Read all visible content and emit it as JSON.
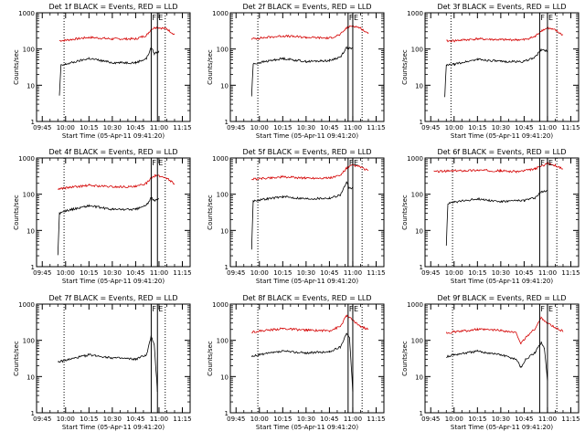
{
  "chart_data": [
    {
      "type": "line",
      "panel": "1",
      "title": "Det 1f BLACK = Events, RED = LLD",
      "xlabel": "Start Time (05-Apr-11 09:41:20)",
      "ylabel": "Counts/sec",
      "xticks": [
        "09:45",
        "10:00",
        "10:15",
        "10:30",
        "10:45",
        "11:00",
        "11:15"
      ],
      "yticks": [
        "1",
        "10",
        "100",
        "1000"
      ],
      "yscale": "log",
      "ylim": [
        1,
        1000
      ],
      "markers": [
        {
          "label": "F",
          "time": "10:55"
        },
        {
          "label": "E",
          "time": "10:59"
        }
      ],
      "dotted_lines": [
        "09:59",
        "11:04"
      ],
      "series": [
        {
          "color": "#d40000",
          "points": [
            [
              "09:56",
              170
            ],
            [
              "10:00",
              175
            ],
            [
              "10:15",
              210
            ],
            [
              "10:30",
              190
            ],
            [
              "10:45",
              190
            ],
            [
              "10:52",
              240
            ],
            [
              "10:55",
              350
            ],
            [
              "10:58",
              400
            ],
            [
              "11:05",
              360
            ],
            [
              "11:10",
              250
            ]
          ]
        },
        {
          "color": "#000000",
          "points": [
            [
              "09:56",
              5
            ],
            [
              "09:57",
              35
            ],
            [
              "10:00",
              38
            ],
            [
              "10:15",
              55
            ],
            [
              "10:30",
              42
            ],
            [
              "10:45",
              42
            ],
            [
              "10:52",
              55
            ],
            [
              "10:55",
              110
            ],
            [
              "10:57",
              75
            ],
            [
              "11:00",
              85
            ]
          ]
        }
      ]
    },
    {
      "type": "line",
      "panel": "2",
      "title": "Det 2f BLACK = Events, RED = LLD",
      "xlabel": "Start Time (05-Apr-11 09:41:20)",
      "ylabel": "Counts/sec",
      "xticks": [
        "09:45",
        "10:00",
        "10:15",
        "10:30",
        "10:45",
        "11:00",
        "11:15"
      ],
      "yticks": [
        "1",
        "10",
        "100",
        "1000"
      ],
      "yscale": "log",
      "ylim": [
        1,
        1000
      ],
      "markers": [
        {
          "label": "F",
          "time": "10:57"
        },
        {
          "label": "E",
          "time": "11:00"
        }
      ],
      "dotted_lines": [
        "09:59",
        "11:06"
      ],
      "series": [
        {
          "color": "#d40000",
          "points": [
            [
              "09:55",
              190
            ],
            [
              "10:00",
              200
            ],
            [
              "10:15",
              230
            ],
            [
              "10:30",
              210
            ],
            [
              "10:45",
              200
            ],
            [
              "10:52",
              250
            ],
            [
              "10:56",
              380
            ],
            [
              "11:00",
              440
            ],
            [
              "11:05",
              380
            ],
            [
              "11:10",
              260
            ]
          ]
        },
        {
          "color": "#000000",
          "points": [
            [
              "09:55",
              5
            ],
            [
              "09:56",
              38
            ],
            [
              "10:00",
              42
            ],
            [
              "10:15",
              55
            ],
            [
              "10:30",
              45
            ],
            [
              "10:45",
              48
            ],
            [
              "10:52",
              60
            ],
            [
              "10:56",
              110
            ],
            [
              "11:00",
              100
            ]
          ]
        }
      ]
    },
    {
      "type": "line",
      "panel": "3",
      "title": "Det 3f BLACK = Events, RED = LLD",
      "xlabel": "Start Time (05-Apr-11 09:41:20)",
      "ylabel": "Counts/sec",
      "xticks": [
        "09:45",
        "10:00",
        "10:15",
        "10:30",
        "10:45",
        "11:00",
        "11:15"
      ],
      "yticks": [
        "1",
        "10",
        "100",
        "1000"
      ],
      "yscale": "log",
      "ylim": [
        1,
        1000
      ],
      "markers": [
        {
          "label": "F",
          "time": "10:55"
        },
        {
          "label": "E",
          "time": "11:00"
        }
      ],
      "dotted_lines": [
        "09:58",
        "11:06"
      ],
      "series": [
        {
          "color": "#d40000",
          "points": [
            [
              "09:55",
              165
            ],
            [
              "10:00",
              170
            ],
            [
              "10:15",
              190
            ],
            [
              "10:30",
              180
            ],
            [
              "10:45",
              180
            ],
            [
              "10:52",
              220
            ],
            [
              "10:56",
              320
            ],
            [
              "11:00",
              380
            ],
            [
              "11:05",
              330
            ],
            [
              "11:10",
              240
            ]
          ]
        },
        {
          "color": "#000000",
          "points": [
            [
              "09:54",
              5
            ],
            [
              "09:55",
              35
            ],
            [
              "10:00",
              38
            ],
            [
              "10:15",
              52
            ],
            [
              "10:30",
              45
            ],
            [
              "10:45",
              45
            ],
            [
              "10:52",
              60
            ],
            [
              "10:56",
              95
            ],
            [
              "11:00",
              90
            ]
          ]
        }
      ]
    },
    {
      "type": "line",
      "panel": "4",
      "title": "Det 4f BLACK = Events, RED = LLD",
      "xlabel": "Start Time (05-Apr-11 09:41:20)",
      "ylabel": "Counts/sec",
      "xticks": [
        "09:45",
        "10:00",
        "10:15",
        "10:30",
        "10:45",
        "11:00",
        "11:15"
      ],
      "yticks": [
        "1",
        "10",
        "100",
        "1000"
      ],
      "yscale": "log",
      "ylim": [
        1,
        1000
      ],
      "markers": [
        {
          "label": "F",
          "time": "10:55"
        },
        {
          "label": "E",
          "time": "10:59"
        }
      ],
      "dotted_lines": [
        "09:59",
        "11:04"
      ],
      "series": [
        {
          "color": "#d40000",
          "points": [
            [
              "09:55",
              140
            ],
            [
              "10:00",
              150
            ],
            [
              "10:15",
              175
            ],
            [
              "10:30",
              160
            ],
            [
              "10:45",
              160
            ],
            [
              "10:52",
              200
            ],
            [
              "10:55",
              290
            ],
            [
              "10:58",
              330
            ],
            [
              "11:05",
              280
            ],
            [
              "11:10",
              190
            ]
          ]
        },
        {
          "color": "#000000",
          "points": [
            [
              "09:55",
              2
            ],
            [
              "09:56",
              30
            ],
            [
              "10:00",
              35
            ],
            [
              "10:15",
              48
            ],
            [
              "10:30",
              38
            ],
            [
              "10:45",
              38
            ],
            [
              "10:52",
              50
            ],
            [
              "10:55",
              80
            ],
            [
              "10:57",
              65
            ],
            [
              "11:00",
              75
            ]
          ]
        }
      ]
    },
    {
      "type": "line",
      "panel": "5",
      "title": "Det 5f BLACK = Events, RED = LLD",
      "xlabel": "Start Time (05-Apr-11 09:41:20)",
      "ylabel": "Counts/sec",
      "xticks": [
        "09:45",
        "10:00",
        "10:15",
        "10:30",
        "10:45",
        "11:00",
        "11:15"
      ],
      "yticks": [
        "1",
        "10",
        "100",
        "1000"
      ],
      "yscale": "log",
      "ylim": [
        1,
        1000
      ],
      "markers": [
        {
          "label": "F",
          "time": "10:57"
        },
        {
          "label": "E",
          "time": "11:00"
        }
      ],
      "dotted_lines": [
        "09:59",
        "11:06"
      ],
      "series": [
        {
          "color": "#d40000",
          "points": [
            [
              "09:55",
              260
            ],
            [
              "10:00",
              270
            ],
            [
              "10:15",
              300
            ],
            [
              "10:30",
              280
            ],
            [
              "10:45",
              280
            ],
            [
              "10:52",
              330
            ],
            [
              "10:56",
              520
            ],
            [
              "11:00",
              640
            ],
            [
              "11:05",
              560
            ],
            [
              "11:10",
              440
            ]
          ]
        },
        {
          "color": "#000000",
          "points": [
            [
              "09:55",
              3
            ],
            [
              "09:56",
              65
            ],
            [
              "10:00",
              70
            ],
            [
              "10:15",
              85
            ],
            [
              "10:30",
              75
            ],
            [
              "10:45",
              78
            ],
            [
              "10:52",
              95
            ],
            [
              "10:56",
              210
            ],
            [
              "10:58",
              140
            ],
            [
              "11:00",
              150
            ]
          ]
        }
      ]
    },
    {
      "type": "line",
      "panel": "6",
      "title": "Det 6f BLACK = Events, RED = LLD",
      "xlabel": "Start Time (05-Apr-11 09:41:20)",
      "ylabel": "Counts/sec",
      "xticks": [
        "09:45",
        "10:00",
        "10:15",
        "10:30",
        "10:45",
        "11:00",
        "11:15"
      ],
      "yticks": [
        "1",
        "10",
        "100",
        "1000"
      ],
      "yscale": "log",
      "ylim": [
        1,
        1000
      ],
      "markers": [
        {
          "label": "F",
          "time": "10:55"
        },
        {
          "label": "E",
          "time": "11:00"
        }
      ],
      "dotted_lines": [
        "09:59",
        "11:06"
      ],
      "series": [
        {
          "color": "#d40000",
          "points": [
            [
              "09:47",
              420
            ],
            [
              "10:00",
              440
            ],
            [
              "10:15",
              460
            ],
            [
              "10:30",
              440
            ],
            [
              "10:40",
              420
            ],
            [
              "10:45",
              440
            ],
            [
              "10:52",
              500
            ],
            [
              "10:56",
              600
            ],
            [
              "11:00",
              700
            ],
            [
              "11:05",
              620
            ],
            [
              "11:10",
              500
            ]
          ]
        },
        {
          "color": "#000000",
          "points": [
            [
              "09:55",
              4
            ],
            [
              "09:56",
              55
            ],
            [
              "10:00",
              60
            ],
            [
              "10:15",
              75
            ],
            [
              "10:30",
              62
            ],
            [
              "10:45",
              68
            ],
            [
              "10:52",
              80
            ],
            [
              "10:56",
              115
            ],
            [
              "11:00",
              130
            ]
          ]
        }
      ]
    },
    {
      "type": "line",
      "panel": "7",
      "title": "Det 7f BLACK = Events, RED = LLD",
      "xlabel": "Start Time (05-Apr-11 09:41:20)",
      "ylabel": "Counts/sec",
      "xticks": [
        "09:45",
        "10:00",
        "10:15",
        "10:30",
        "10:45",
        "11:00",
        "11:15"
      ],
      "yticks": [
        "1",
        "10",
        "100",
        "1000"
      ],
      "yscale": "log",
      "ylim": [
        1,
        1000
      ],
      "markers": [
        {
          "label": "F",
          "time": "10:55"
        },
        {
          "label": "E",
          "time": "10:59"
        }
      ],
      "dotted_lines": [
        "09:59",
        "11:04"
      ],
      "series": [
        {
          "color": "#000000",
          "points": [
            [
              "09:55",
              25
            ],
            [
              "10:00",
              28
            ],
            [
              "10:15",
              40
            ],
            [
              "10:30",
              33
            ],
            [
              "10:45",
              30
            ],
            [
              "10:52",
              40
            ],
            [
              "10:55",
              130
            ],
            [
              "10:57",
              70
            ],
            [
              "10:59",
              4
            ]
          ]
        }
      ]
    },
    {
      "type": "line",
      "panel": "8",
      "title": "Det 8f BLACK = Events, RED = LLD",
      "xlabel": "Start Time (05-Apr-11 09:41:20)",
      "ylabel": "Counts/sec",
      "xticks": [
        "09:45",
        "10:00",
        "10:15",
        "10:30",
        "10:45",
        "11:00",
        "11:15"
      ],
      "yticks": [
        "1",
        "10",
        "100",
        "1000"
      ],
      "yscale": "log",
      "ylim": [
        1,
        1000
      ],
      "markers": [
        {
          "label": "F",
          "time": "10:57"
        },
        {
          "label": "E",
          "time": "11:00"
        }
      ],
      "dotted_lines": [
        "09:59",
        "11:06"
      ],
      "series": [
        {
          "color": "#d40000",
          "points": [
            [
              "09:55",
              170
            ],
            [
              "10:00",
              180
            ],
            [
              "10:15",
              210
            ],
            [
              "10:30",
              190
            ],
            [
              "10:45",
              185
            ],
            [
              "10:52",
              240
            ],
            [
              "10:56",
              480
            ],
            [
              "11:00",
              360
            ],
            [
              "11:05",
              240
            ],
            [
              "11:10",
              200
            ]
          ]
        },
        {
          "color": "#000000",
          "points": [
            [
              "09:55",
              35
            ],
            [
              "10:00",
              40
            ],
            [
              "10:15",
              50
            ],
            [
              "10:30",
              45
            ],
            [
              "10:45",
              48
            ],
            [
              "10:52",
              65
            ],
            [
              "10:56",
              160
            ],
            [
              "10:58",
              110
            ],
            [
              "11:00",
              4
            ]
          ]
        }
      ]
    },
    {
      "type": "line",
      "panel": "9",
      "title": "Det 9f BLACK = Events, RED = LLD",
      "xlabel": "Start Time (05-Apr-11 09:41:20)",
      "ylabel": "Counts/sec",
      "xticks": [
        "09:45",
        "10:00",
        "10:15",
        "10:30",
        "10:45",
        "11:00",
        "11:15"
      ],
      "yticks": [
        "1",
        "10",
        "100",
        "1000"
      ],
      "yscale": "log",
      "ylim": [
        1,
        1000
      ],
      "markers": [
        {
          "label": "F",
          "time": "10:55"
        },
        {
          "label": "E",
          "time": "11:00"
        }
      ],
      "dotted_lines": [
        "09:59",
        "11:06"
      ],
      "series": [
        {
          "color": "#d40000",
          "points": [
            [
              "09:55",
              160
            ],
            [
              "10:00",
              170
            ],
            [
              "10:15",
              200
            ],
            [
              "10:30",
              190
            ],
            [
              "10:40",
              160
            ],
            [
              "10:43",
              80
            ],
            [
              "10:46",
              120
            ],
            [
              "10:52",
              210
            ],
            [
              "10:56",
              420
            ],
            [
              "11:00",
              300
            ],
            [
              "11:05",
              220
            ],
            [
              "11:10",
              180
            ]
          ]
        },
        {
          "color": "#000000",
          "points": [
            [
              "09:55",
              35
            ],
            [
              "10:00",
              40
            ],
            [
              "10:15",
              50
            ],
            [
              "10:30",
              40
            ],
            [
              "10:40",
              30
            ],
            [
              "10:43",
              18
            ],
            [
              "10:46",
              30
            ],
            [
              "10:52",
              45
            ],
            [
              "10:56",
              90
            ],
            [
              "10:58",
              60
            ],
            [
              "11:00",
              8
            ]
          ]
        }
      ]
    }
  ]
}
